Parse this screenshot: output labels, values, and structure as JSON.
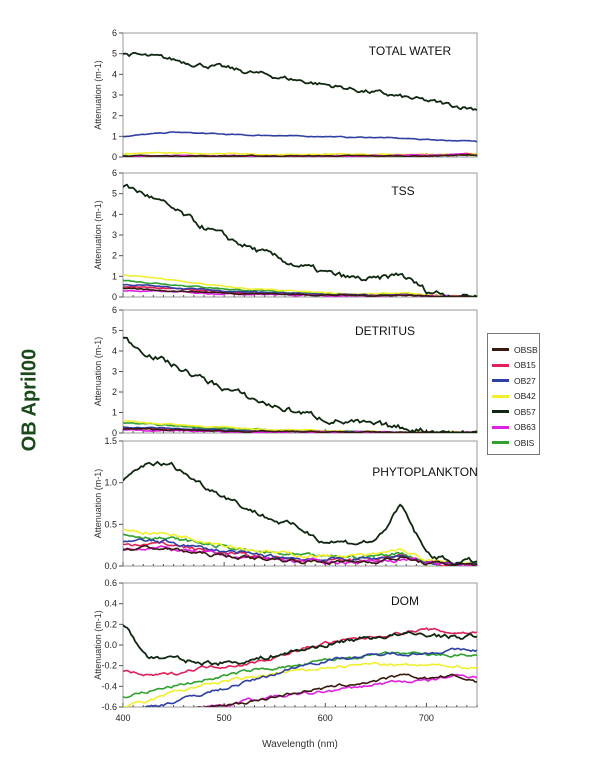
{
  "figure_title": "OB April00",
  "chart_data": [
    {
      "type": "line",
      "title": "TOTAL WATER",
      "ylabel": "Attenuation (m-1)",
      "xlim": [
        400,
        750
      ],
      "ylim": [
        0,
        6
      ],
      "yticks": [
        "0",
        "1",
        "2",
        "3",
        "4",
        "5",
        "6"
      ],
      "noise": 0.03,
      "x": [
        400,
        425,
        450,
        475,
        500,
        525,
        550,
        575,
        600,
        625,
        650,
        675,
        700,
        725,
        750
      ],
      "series": [
        {
          "name": "OBSB",
          "values": [
            0.05,
            0.05,
            0.05,
            0.05,
            0.05,
            0.05,
            0.05,
            0.05,
            0.05,
            0.05,
            0.05,
            0.05,
            0.05,
            0.08,
            0.1
          ]
        },
        {
          "name": "OB15",
          "values": [
            0.05,
            0.05,
            0.05,
            0.05,
            0.05,
            0.05,
            0.05,
            0.05,
            0.05,
            0.05,
            0.05,
            0.08,
            0.1,
            0.12,
            0.15
          ]
        },
        {
          "name": "OB27",
          "values": [
            1.0,
            1.1,
            1.2,
            1.15,
            1.1,
            1.05,
            1.05,
            1.0,
            1.0,
            0.95,
            0.95,
            0.9,
            0.85,
            0.8,
            0.75
          ]
        },
        {
          "name": "OB42",
          "values": [
            0.15,
            0.18,
            0.2,
            0.18,
            0.15,
            0.15,
            0.12,
            0.12,
            0.12,
            0.12,
            0.12,
            0.12,
            0.12,
            0.12,
            0.15
          ]
        },
        {
          "name": "OB57",
          "values": [
            5.0,
            4.85,
            4.7,
            4.5,
            4.3,
            4.1,
            3.9,
            3.7,
            3.5,
            3.3,
            3.1,
            2.9,
            2.7,
            2.5,
            2.35
          ]
        },
        {
          "name": "OB63",
          "values": [
            0.05,
            0.05,
            0.05,
            0.05,
            0.05,
            0.05,
            0.05,
            0.05,
            0.05,
            0.05,
            0.06,
            0.08,
            0.1,
            0.12,
            0.12
          ]
        },
        {
          "name": "OBIS",
          "values": [
            0.05,
            0.05,
            0.05,
            0.05,
            0.05,
            0.05,
            0.05,
            0.05,
            0.05,
            0.05,
            0.05,
            0.05,
            0.08,
            0.1,
            0.1
          ]
        }
      ]
    },
    {
      "type": "line",
      "title": "TSS",
      "ylabel": "Attenuation (m-1)",
      "xlim": [
        400,
        750
      ],
      "ylim": [
        0,
        6
      ],
      "yticks": [
        "0",
        "1",
        "2",
        "3",
        "4",
        "5",
        "6"
      ],
      "noise": 0.04,
      "x": [
        400,
        425,
        450,
        475,
        500,
        525,
        550,
        575,
        600,
        625,
        650,
        675,
        700,
        725,
        750
      ],
      "series": [
        {
          "name": "OBSB",
          "values": [
            0.4,
            0.35,
            0.3,
            0.25,
            0.2,
            0.17,
            0.15,
            0.12,
            0.1,
            0.08,
            0.07,
            0.1,
            0.05,
            0.03,
            0.02
          ]
        },
        {
          "name": "OB15",
          "values": [
            0.5,
            0.45,
            0.4,
            0.32,
            0.25,
            0.2,
            0.16,
            0.13,
            0.1,
            0.08,
            0.07,
            0.1,
            0.05,
            0.03,
            0.02
          ]
        },
        {
          "name": "OB27",
          "values": [
            0.6,
            0.55,
            0.45,
            0.38,
            0.3,
            0.25,
            0.2,
            0.15,
            0.12,
            0.1,
            0.08,
            0.12,
            0.05,
            0.03,
            0.02
          ]
        },
        {
          "name": "OB42",
          "values": [
            1.05,
            0.95,
            0.8,
            0.65,
            0.5,
            0.4,
            0.32,
            0.25,
            0.2,
            0.16,
            0.14,
            0.2,
            0.08,
            0.05,
            0.03
          ]
        },
        {
          "name": "OB57",
          "values": [
            5.4,
            4.9,
            4.2,
            3.5,
            2.9,
            2.4,
            1.9,
            1.5,
            1.15,
            0.9,
            0.8,
            1.1,
            0.3,
            0.1,
            0.05
          ]
        },
        {
          "name": "OB63",
          "values": [
            0.3,
            0.28,
            0.25,
            0.2,
            0.17,
            0.14,
            0.12,
            0.1,
            0.08,
            0.07,
            0.06,
            0.08,
            0.04,
            0.02,
            0.02
          ]
        },
        {
          "name": "OBIS",
          "values": [
            0.8,
            0.7,
            0.6,
            0.5,
            0.4,
            0.32,
            0.26,
            0.2,
            0.16,
            0.13,
            0.11,
            0.15,
            0.06,
            0.04,
            0.03
          ]
        }
      ]
    },
    {
      "type": "line",
      "title": "DETRITUS",
      "ylabel": "Attenuation (m-1)",
      "xlim": [
        400,
        750
      ],
      "ylim": [
        0,
        6
      ],
      "yticks": [
        "0",
        "1",
        "2",
        "3",
        "4",
        "5",
        "6"
      ],
      "noise": 0.04,
      "x": [
        400,
        425,
        450,
        475,
        500,
        525,
        550,
        575,
        600,
        625,
        650,
        675,
        700,
        725,
        750
      ],
      "series": [
        {
          "name": "OBSB",
          "values": [
            0.2,
            0.18,
            0.15,
            0.12,
            0.1,
            0.08,
            0.07,
            0.06,
            0.05,
            0.04,
            0.03,
            0.03,
            0.02,
            0.02,
            0.02
          ]
        },
        {
          "name": "OB15",
          "values": [
            0.25,
            0.22,
            0.18,
            0.15,
            0.12,
            0.1,
            0.08,
            0.07,
            0.06,
            0.05,
            0.04,
            0.03,
            0.02,
            0.02,
            0.02
          ]
        },
        {
          "name": "OB27",
          "values": [
            0.3,
            0.26,
            0.22,
            0.18,
            0.14,
            0.11,
            0.09,
            0.07,
            0.06,
            0.05,
            0.04,
            0.03,
            0.02,
            0.02,
            0.02
          ]
        },
        {
          "name": "OB42",
          "values": [
            0.6,
            0.5,
            0.42,
            0.34,
            0.27,
            0.21,
            0.17,
            0.13,
            0.1,
            0.08,
            0.06,
            0.05,
            0.04,
            0.03,
            0.02
          ]
        },
        {
          "name": "OB57",
          "values": [
            4.6,
            3.9,
            3.3,
            2.7,
            2.2,
            1.7,
            1.3,
            1.0,
            0.7,
            0.5,
            0.35,
            0.25,
            0.15,
            0.05,
            0.02
          ]
        },
        {
          "name": "OB63",
          "values": [
            0.15,
            0.13,
            0.11,
            0.09,
            0.08,
            0.06,
            0.05,
            0.04,
            0.04,
            0.03,
            0.03,
            0.02,
            0.02,
            0.02,
            0.02
          ]
        },
        {
          "name": "OBIS",
          "values": [
            0.5,
            0.42,
            0.35,
            0.28,
            0.22,
            0.18,
            0.14,
            0.11,
            0.09,
            0.07,
            0.05,
            0.04,
            0.03,
            0.02,
            0.02
          ]
        }
      ]
    },
    {
      "type": "line",
      "title": "PHYTOPLANKTON",
      "ylabel": "Attenuation (m-1)",
      "xlim": [
        400,
        750
      ],
      "ylim": [
        0,
        1.5
      ],
      "yticks": [
        "0.0",
        "0.5",
        "1.0",
        "1.5"
      ],
      "noise": 0.035,
      "x": [
        400,
        425,
        450,
        475,
        500,
        525,
        550,
        575,
        600,
        625,
        650,
        675,
        700,
        725,
        750
      ],
      "series": [
        {
          "name": "OBSB",
          "values": [
            0.2,
            0.22,
            0.2,
            0.15,
            0.12,
            0.1,
            0.08,
            0.06,
            0.05,
            0.05,
            0.06,
            0.1,
            0.03,
            0.02,
            0.02
          ]
        },
        {
          "name": "OB15",
          "values": [
            0.25,
            0.28,
            0.25,
            0.2,
            0.16,
            0.12,
            0.1,
            0.08,
            0.07,
            0.07,
            0.08,
            0.12,
            0.04,
            0.02,
            0.02
          ]
        },
        {
          "name": "OB27",
          "values": [
            0.3,
            0.3,
            0.28,
            0.22,
            0.18,
            0.14,
            0.11,
            0.09,
            0.08,
            0.08,
            0.09,
            0.13,
            0.04,
            0.02,
            0.02
          ]
        },
        {
          "name": "OB42",
          "values": [
            0.45,
            0.4,
            0.38,
            0.32,
            0.26,
            0.2,
            0.16,
            0.13,
            0.12,
            0.12,
            0.13,
            0.2,
            0.06,
            0.03,
            0.02
          ]
        },
        {
          "name": "OB57",
          "values": [
            1.0,
            1.25,
            1.2,
            1.0,
            0.85,
            0.68,
            0.55,
            0.45,
            0.3,
            0.28,
            0.3,
            0.72,
            0.15,
            0.05,
            0.05
          ]
        },
        {
          "name": "OB63",
          "values": [
            0.22,
            0.22,
            0.2,
            0.16,
            0.13,
            0.1,
            0.08,
            0.06,
            0.05,
            0.05,
            0.06,
            0.08,
            0.03,
            0.02,
            0.02
          ]
        },
        {
          "name": "OBIS",
          "values": [
            0.38,
            0.35,
            0.32,
            0.28,
            0.23,
            0.18,
            0.15,
            0.12,
            0.11,
            0.11,
            0.12,
            0.16,
            0.05,
            0.03,
            0.02
          ]
        }
      ]
    },
    {
      "type": "line",
      "title": "DOM",
      "ylabel": "Attenuation (m-1)",
      "xlabel": "Wavelength (nm)",
      "xlim": [
        400,
        750
      ],
      "ylim": [
        -0.6,
        0.6
      ],
      "yticks": [
        "-0.6",
        "-0.4",
        "-0.2",
        "0.0",
        "0.2",
        "0.4",
        "0.6"
      ],
      "xticks": [
        "400",
        "500",
        "600",
        "700"
      ],
      "noise": 0.03,
      "x": [
        400,
        425,
        450,
        475,
        500,
        525,
        550,
        575,
        600,
        625,
        650,
        675,
        700,
        725,
        750
      ],
      "series": [
        {
          "name": "OBSB",
          "values": [
            -0.7,
            -0.7,
            -0.68,
            -0.62,
            -0.58,
            -0.55,
            -0.5,
            -0.45,
            -0.42,
            -0.38,
            -0.35,
            -0.3,
            -0.32,
            -0.3,
            -0.35
          ]
        },
        {
          "name": "OB15",
          "values": [
            -0.25,
            -0.3,
            -0.28,
            -0.22,
            -0.2,
            -0.18,
            -0.12,
            -0.05,
            0.02,
            0.05,
            0.08,
            0.12,
            0.15,
            0.12,
            0.12
          ]
        },
        {
          "name": "OB27",
          "values": [
            -0.65,
            -0.6,
            -0.55,
            -0.48,
            -0.42,
            -0.35,
            -0.28,
            -0.2,
            -0.15,
            -0.12,
            -0.1,
            -0.08,
            -0.08,
            -0.05,
            -0.05
          ]
        },
        {
          "name": "OB42",
          "values": [
            -0.6,
            -0.55,
            -0.45,
            -0.4,
            -0.35,
            -0.32,
            -0.28,
            -0.25,
            -0.22,
            -0.2,
            -0.18,
            -0.2,
            -0.2,
            -0.2,
            -0.22
          ]
        },
        {
          "name": "OB57",
          "values": [
            0.2,
            -0.12,
            -0.13,
            -0.17,
            -0.17,
            -0.15,
            -0.1,
            -0.05,
            0.0,
            0.05,
            0.08,
            0.1,
            0.1,
            0.08,
            0.08
          ]
        },
        {
          "name": "OB63",
          "values": [
            -0.7,
            -0.68,
            -0.65,
            -0.6,
            -0.58,
            -0.53,
            -0.5,
            -0.48,
            -0.45,
            -0.42,
            -0.38,
            -0.35,
            -0.35,
            -0.3,
            -0.3
          ]
        },
        {
          "name": "OBIS",
          "values": [
            -0.5,
            -0.45,
            -0.4,
            -0.35,
            -0.3,
            -0.25,
            -0.22,
            -0.2,
            -0.15,
            -0.12,
            -0.1,
            -0.08,
            -0.1,
            -0.1,
            -0.1
          ]
        }
      ]
    }
  ],
  "legend": {
    "placement": "right",
    "items": [
      {
        "name": "OBSB",
        "color": "#3a1a10"
      },
      {
        "name": "OB15",
        "color": "#e0205a"
      },
      {
        "name": "OB27",
        "color": "#3040a0"
      },
      {
        "name": "OB42",
        "color": "#f0f030"
      },
      {
        "name": "OB57",
        "color": "#102810"
      },
      {
        "name": "OB63",
        "color": "#e020e0"
      },
      {
        "name": "OBIS",
        "color": "#30a030"
      }
    ]
  }
}
